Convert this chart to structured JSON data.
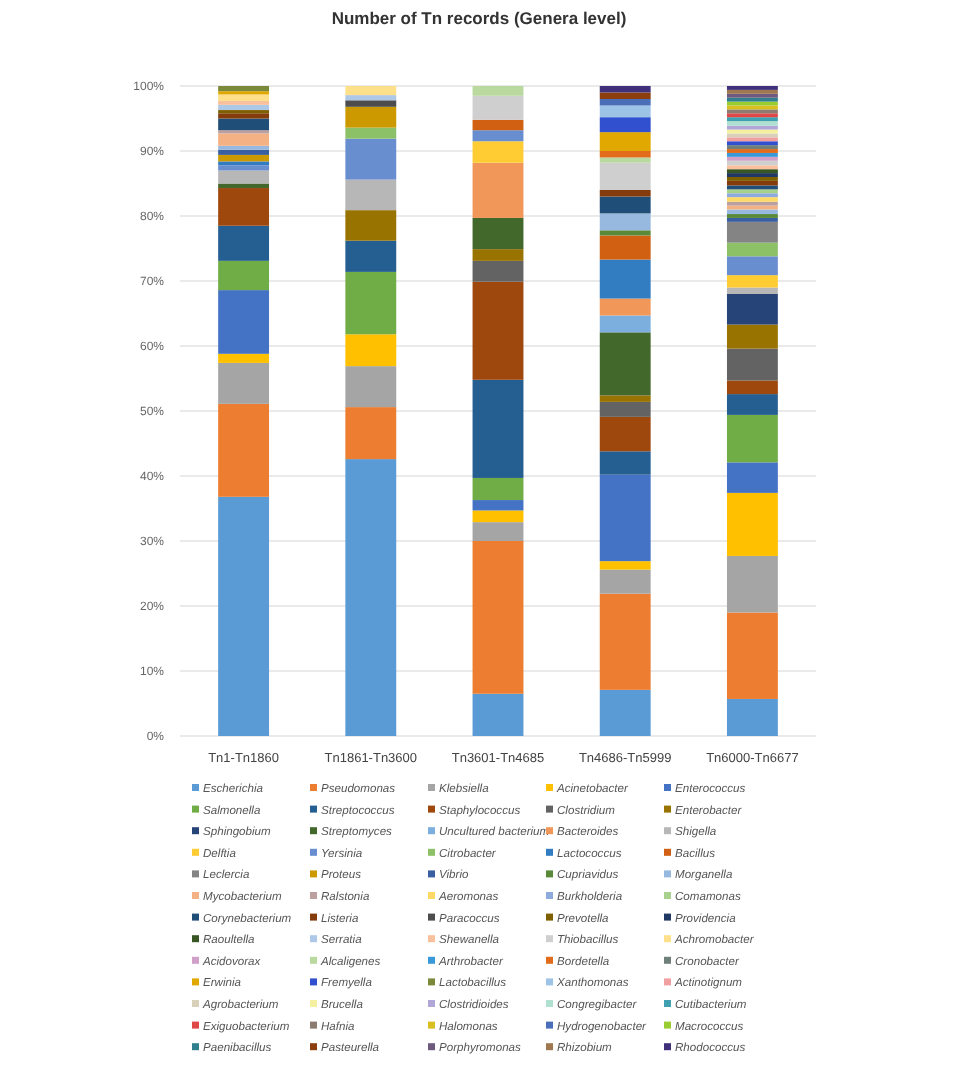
{
  "chart_data": {
    "type": "bar",
    "stacked": true,
    "title": "Number of Tn records (Genera level)",
    "categories": [
      "Tn1-Tn1860",
      "Tn1861-Tn3600",
      "Tn3601-Tn4685",
      "Tn4686-Tn5999",
      "Tn6000-Tn6677"
    ],
    "ylim": [
      0,
      100
    ],
    "yticks": [
      {
        "value": 0,
        "label": "0%"
      },
      {
        "value": 10,
        "label": "10%"
      },
      {
        "value": 20,
        "label": "20%"
      },
      {
        "value": 30,
        "label": "30%"
      },
      {
        "value": 40,
        "label": "40%"
      },
      {
        "value": 50,
        "label": "50%"
      },
      {
        "value": 60,
        "label": "60%"
      },
      {
        "value": 70,
        "label": "70%"
      },
      {
        "value": 80,
        "label": "80%"
      },
      {
        "value": 90,
        "label": "90%"
      },
      {
        "value": 100,
        "label": "100%"
      }
    ],
    "grid": "y",
    "legend": "bottom",
    "series": [
      {
        "name": "Escherichia",
        "color": "#5b9bd5",
        "values": [
          36.8,
          42.6,
          6.5,
          7.1,
          5.7
        ]
      },
      {
        "name": "Pseudomonas",
        "color": "#ed7d31",
        "values": [
          14.3,
          8.0,
          23.5,
          14.8,
          13.3
        ]
      },
      {
        "name": "Klebsiella",
        "color": "#a5a5a5",
        "values": [
          6.3,
          6.3,
          2.9,
          3.7,
          8.7
        ]
      },
      {
        "name": "Acinetobacter",
        "color": "#ffc000",
        "values": [
          1.4,
          4.9,
          1.8,
          1.3,
          9.7
        ]
      },
      {
        "name": "Enterococcus",
        "color": "#4472c4",
        "values": [
          9.8,
          0,
          1.6,
          13.3,
          4.7
        ]
      },
      {
        "name": "Salmonella",
        "color": "#70ad47",
        "values": [
          4.5,
          9.6,
          3.4,
          0,
          7.3
        ]
      },
      {
        "name": "Streptococcus",
        "color": "#255e91",
        "values": [
          5.4,
          4.8,
          15.1,
          3.6,
          3.2
        ]
      },
      {
        "name": "Staphylococcus",
        "color": "#9e480e",
        "values": [
          5.8,
          0,
          15.1,
          5.3,
          2.1
        ]
      },
      {
        "name": "Clostridium",
        "color": "#636363",
        "values": [
          0,
          0,
          3.2,
          2.3,
          4.9
        ]
      },
      {
        "name": "Enterobacter",
        "color": "#997300",
        "values": [
          0,
          4.7,
          1.8,
          1.0,
          3.7
        ]
      },
      {
        "name": "Sphingobium",
        "color": "#264478",
        "values": [
          0,
          0,
          0,
          0,
          4.7
        ]
      },
      {
        "name": "Streptomyces",
        "color": "#43682b",
        "values": [
          0.7,
          0,
          4.8,
          9.7,
          0
        ]
      },
      {
        "name": "Uncultured bacterium",
        "color": "#7cafdd",
        "values": [
          0,
          0,
          0,
          2.6,
          0
        ]
      },
      {
        "name": "Bacteroides",
        "color": "#f1975a",
        "values": [
          0,
          0,
          8.5,
          2.6,
          0
        ]
      },
      {
        "name": "Shigella",
        "color": "#b7b7b7",
        "values": [
          2.0,
          4.7,
          0,
          0,
          1.0
        ]
      },
      {
        "name": "Delftia",
        "color": "#ffcd33",
        "values": [
          0,
          0,
          3.3,
          0,
          1.9
        ]
      },
      {
        "name": "Yersinia",
        "color": "#698ed0",
        "values": [
          0.8,
          6.3,
          1.7,
          0,
          2.9
        ]
      },
      {
        "name": "Citrobacter",
        "color": "#8cc168",
        "values": [
          0,
          1.7,
          0,
          0,
          2.1
        ]
      },
      {
        "name": "Lactococcus",
        "color": "#327dc2",
        "values": [
          0.6,
          0,
          0,
          6.0,
          0
        ]
      },
      {
        "name": "Bacillus",
        "color": "#d26012",
        "values": [
          0,
          0,
          1.6,
          3.7,
          0
        ]
      },
      {
        "name": "Leclercia",
        "color": "#848484",
        "values": [
          0,
          0,
          0,
          0,
          3.2
        ]
      },
      {
        "name": "Proteus",
        "color": "#cc9a00",
        "values": [
          1.0,
          3.2,
          0,
          0,
          0
        ]
      },
      {
        "name": "Vibrio",
        "color": "#3a5fa0",
        "values": [
          0.8,
          0,
          0,
          0,
          0.6
        ]
      },
      {
        "name": "Cupriavidus",
        "color": "#5a8a39",
        "values": [
          0,
          0,
          0,
          0.8,
          0.6
        ]
      },
      {
        "name": "Morganella",
        "color": "#97b9e0",
        "values": [
          0.6,
          0,
          0,
          2.6,
          0.7
        ]
      },
      {
        "name": "Mycobacterium",
        "color": "#f4b183",
        "values": [
          1.9,
          0,
          0,
          0,
          0.6
        ]
      },
      {
        "name": "Ralstonia",
        "color": "#bca0a0",
        "values": [
          0.5,
          0,
          0,
          0,
          0.6
        ]
      },
      {
        "name": "Aeromonas",
        "color": "#ffd966",
        "values": [
          0,
          0,
          0,
          0,
          0.7
        ]
      },
      {
        "name": "Burkholderia",
        "color": "#8faadc",
        "values": [
          0,
          0,
          0,
          0,
          0.6
        ]
      },
      {
        "name": "Comamonas",
        "color": "#a9d18e",
        "values": [
          0,
          0,
          0,
          0,
          0.6
        ]
      },
      {
        "name": "Corynebacterium",
        "color": "#1f4e79",
        "values": [
          1.8,
          0,
          0,
          2.6,
          0.6
        ]
      },
      {
        "name": "Listeria",
        "color": "#843c0c",
        "values": [
          0.8,
          0,
          0,
          1.0,
          0.7
        ]
      },
      {
        "name": "Paracoccus",
        "color": "#4d4d4d",
        "values": [
          0,
          1.0,
          0,
          0,
          0
        ]
      },
      {
        "name": "Prevotella",
        "color": "#7f6000",
        "values": [
          0.5,
          0,
          0,
          0,
          0.6
        ]
      },
      {
        "name": "Providencia",
        "color": "#1f3864",
        "values": [
          0,
          0,
          0,
          0,
          0.6
        ]
      },
      {
        "name": "Raoultella",
        "color": "#375623",
        "values": [
          0,
          0,
          0,
          0,
          0.6
        ]
      },
      {
        "name": "Serratia",
        "color": "#aec8e8",
        "values": [
          0.8,
          0.8,
          0,
          0,
          0
        ]
      },
      {
        "name": "Shewanella",
        "color": "#f8c09c",
        "values": [
          0.6,
          0,
          0,
          0,
          0.6
        ]
      },
      {
        "name": "Thiobacillus",
        "color": "#cfcfcf",
        "values": [
          0,
          0,
          3.7,
          4.2,
          0.7
        ]
      },
      {
        "name": "Achromobacter",
        "color": "#ffe08a",
        "values": [
          1.0,
          1.4,
          0,
          0,
          0
        ]
      },
      {
        "name": "Acidovorax",
        "color": "#d0a0c8",
        "values": [
          0,
          0,
          0,
          0,
          0.6
        ]
      },
      {
        "name": "Alcaligenes",
        "color": "#b9d99f",
        "values": [
          0,
          0,
          1.5,
          0.8,
          0
        ]
      },
      {
        "name": "Arthrobacter",
        "color": "#3a9ad9",
        "values": [
          0,
          0,
          0,
          0,
          0.6
        ]
      },
      {
        "name": "Bordetella",
        "color": "#e36c1c",
        "values": [
          0,
          0,
          0,
          1.0,
          0.6
        ]
      },
      {
        "name": "Cronobacter",
        "color": "#6f7f7a",
        "values": [
          0,
          0,
          0,
          0,
          0.6
        ]
      },
      {
        "name": "Erwinia",
        "color": "#e0a800",
        "values": [
          0.5,
          0,
          0,
          2.9,
          0
        ]
      },
      {
        "name": "Fremyella",
        "color": "#3050d0",
        "values": [
          0,
          0,
          0,
          2.3,
          0.6
        ]
      },
      {
        "name": "Lactobacillus",
        "color": "#7a8a3a",
        "values": [
          0.8,
          0,
          0,
          0,
          0
        ]
      },
      {
        "name": "Xanthomonas",
        "color": "#9dc3e6",
        "values": [
          0,
          0,
          0,
          1.8,
          0
        ]
      },
      {
        "name": "Actinotignum",
        "color": "#f0a0a0",
        "values": [
          0,
          0,
          0,
          0,
          0.6
        ]
      },
      {
        "name": "Agrobacterium",
        "color": "#d8d0b8",
        "values": [
          0,
          0,
          0,
          0,
          0.6
        ]
      },
      {
        "name": "Brucella",
        "color": "#f5f0a0",
        "values": [
          0,
          0,
          0,
          0,
          0.6
        ]
      },
      {
        "name": "Clostridioides",
        "color": "#b0a6d8",
        "values": [
          0,
          0,
          0,
          0,
          0.6
        ]
      },
      {
        "name": "Congregibacter",
        "color": "#b0e0d0",
        "values": [
          0,
          0,
          0,
          0,
          0.7
        ]
      },
      {
        "name": "Cutibacterium",
        "color": "#40a0b0",
        "values": [
          0,
          0,
          0,
          0,
          0.6
        ]
      },
      {
        "name": "Exiguobacterium",
        "color": "#e04848",
        "values": [
          0,
          0,
          0,
          0,
          0.6
        ]
      },
      {
        "name": "Hafnia",
        "color": "#8c7b70",
        "values": [
          0,
          0,
          0,
          0,
          0.6
        ]
      },
      {
        "name": "Halomonas",
        "color": "#d8c020",
        "values": [
          0,
          0,
          0,
          0,
          0.6
        ]
      },
      {
        "name": "Hydrogenobacter",
        "color": "#4a6fb8",
        "values": [
          0,
          0,
          0,
          1.0,
          0
        ]
      },
      {
        "name": "Macrococcus",
        "color": "#9acd32",
        "values": [
          0,
          0,
          0,
          0,
          0.6
        ]
      },
      {
        "name": "Paenibacillus",
        "color": "#2f7f8f",
        "values": [
          0,
          0,
          0,
          0,
          0.6
        ]
      },
      {
        "name": "Pasteurella",
        "color": "#8c3f0d",
        "values": [
          0,
          0,
          0,
          1.0,
          0
        ]
      },
      {
        "name": "Porphyromonas",
        "color": "#6e5a7e",
        "values": [
          0,
          0,
          0,
          0,
          0.6
        ]
      },
      {
        "name": "Rhizobium",
        "color": "#a07850",
        "values": [
          0,
          0,
          0,
          0,
          0.6
        ]
      },
      {
        "name": "Rhodococcus",
        "color": "#40307a",
        "values": [
          0,
          0,
          0,
          1.0,
          0.6
        ]
      }
    ]
  }
}
